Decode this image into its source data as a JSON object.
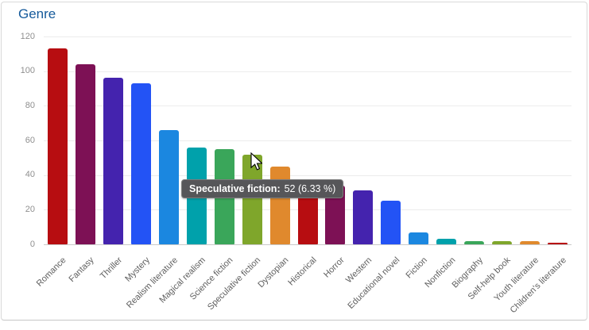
{
  "title": "Genre",
  "chart_data": {
    "type": "bar",
    "title": "Genre",
    "categories": [
      "Romance",
      "Fantasy",
      "Thriller",
      "Mystery",
      "Realism literature",
      "Magical realism",
      "Science fiction",
      "Speculative fiction",
      "Dystopian",
      "Historical",
      "Horror",
      "Western",
      "Educational novel",
      "Fiction",
      "Nonfiction",
      "Biography",
      "Self-help book",
      "Youth literature",
      "Children's literature"
    ],
    "values": [
      113,
      104,
      96,
      93,
      66,
      56,
      55,
      52,
      45,
      35,
      34,
      31,
      25,
      7,
      3,
      2,
      2,
      2,
      1
    ],
    "bar_color_cycle": [
      "#b70d11",
      "#7d1155",
      "#4423ae",
      "#2353f5",
      "#1b87e0",
      "#00a1ab",
      "#3aa65a",
      "#7fa62b",
      "#e0892d"
    ],
    "xlabel": "",
    "ylabel": "",
    "ylim": [
      0,
      120
    ],
    "yticks": [
      0,
      20,
      40,
      60,
      80,
      100,
      120
    ],
    "grid": "horizontal-only",
    "legend": "none"
  },
  "tooltip": {
    "name_part": "Speculative fiction:",
    "value_part": "52 (6.33 %)",
    "hovered_category": "Speculative fiction",
    "bg_color": "#565659",
    "text_color": "#ffffff"
  },
  "colors": {
    "title_text": "#155a9b",
    "y_tick_text": "#8f8f8f",
    "x_tick_text": "#5f5f5f",
    "gridline": "#ececec",
    "axis_baseline": "#c9c9c9",
    "card_border": "#d9d9d9",
    "background": "#ffffff"
  }
}
